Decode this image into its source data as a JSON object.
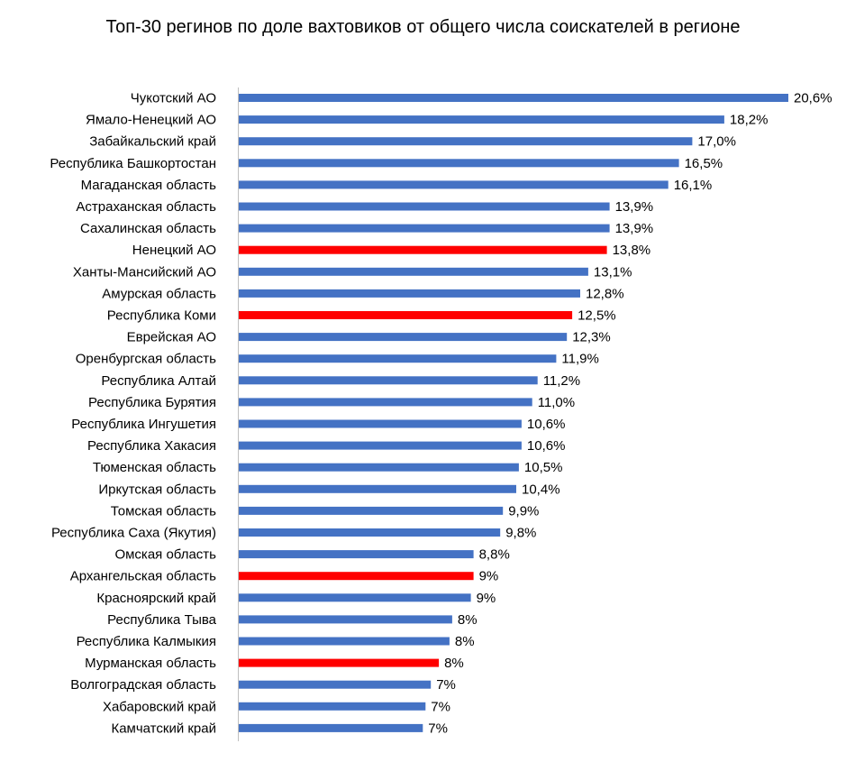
{
  "chart_data": {
    "type": "bar",
    "orientation": "horizontal",
    "title": "Топ-30 регинов по доле вахтовиков от общего числа соискателей в регионе",
    "xlabel": "",
    "ylabel": "",
    "xlim": [
      0,
      20.6
    ],
    "grid": false,
    "legend": "none",
    "colors": {
      "default": "#4472C4",
      "highlight": "#FF0000"
    },
    "categories": [
      "Чукотский АО",
      "Ямало-Ненецкий АО",
      "Забайкальский край",
      "Республика Башкортостан",
      "Магаданская область",
      "Астраханская область",
      "Сахалинская область",
      "Ненецкий АО",
      "Ханты-Мансийский АО",
      "Амурская область",
      "Республика Коми",
      "Еврейская АО",
      "Оренбургская область",
      "Республика Алтай",
      "Республика Бурятия",
      "Республика Ингушетия",
      "Республика Хакасия",
      "Тюменская область",
      "Иркутская область",
      "Томская область",
      "Республика Саха (Якутия)",
      "Омская область",
      "Архангельская область",
      "Красноярский край",
      "Республика Тыва",
      "Республика Калмыкия",
      "Мурманская область",
      "Волгоградская область",
      "Хабаровский край",
      "Камчатский край"
    ],
    "values": [
      20.6,
      18.2,
      17.0,
      16.5,
      16.1,
      13.9,
      13.9,
      13.8,
      13.1,
      12.8,
      12.5,
      12.3,
      11.9,
      11.2,
      11.0,
      10.6,
      10.6,
      10.5,
      10.4,
      9.9,
      9.8,
      8.8,
      8.8,
      8.7,
      8.0,
      7.9,
      7.5,
      7.2,
      7.0,
      6.9
    ],
    "value_labels": [
      "20,6%",
      "18,2%",
      "17,0%",
      "16,5%",
      "16,1%",
      "13,9%",
      "13,9%",
      "13,8%",
      "13,1%",
      "12,8%",
      "12,5%",
      "12,3%",
      "11,9%",
      "11,2%",
      "11,0%",
      "10,6%",
      "10,6%",
      "10,5%",
      "10,4%",
      "9,9%",
      "9,8%",
      "8,8%",
      "9%",
      "9%",
      "8%",
      "8%",
      "8%",
      "7%",
      "7%",
      "7%"
    ],
    "highlighted": [
      false,
      false,
      false,
      false,
      false,
      false,
      false,
      true,
      false,
      false,
      true,
      false,
      false,
      false,
      false,
      false,
      false,
      false,
      false,
      false,
      false,
      false,
      true,
      false,
      false,
      false,
      true,
      false,
      false,
      false
    ]
  }
}
